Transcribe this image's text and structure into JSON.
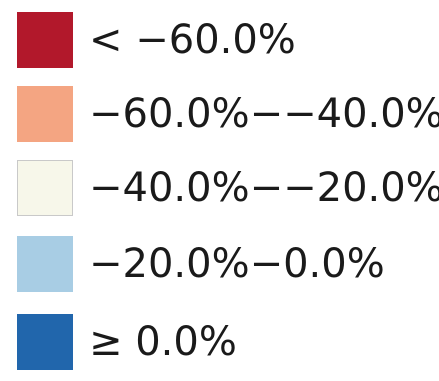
{
  "chart_data": {
    "type": "heatmap",
    "legend": {
      "placement": "left",
      "items": [
        {
          "label": "< −60.0%",
          "color": "#b2182b"
        },
        {
          "label": "−60.0%−−40.0%",
          "color": "#f4a582"
        },
        {
          "label": "−40.0%−−20.0%",
          "color": "#f7f7ea"
        },
        {
          "label": "−20.0%−0.0%",
          "color": "#a8cde4"
        },
        {
          "label": "≥ 0.0%",
          "color": "#2166ac"
        }
      ]
    }
  }
}
